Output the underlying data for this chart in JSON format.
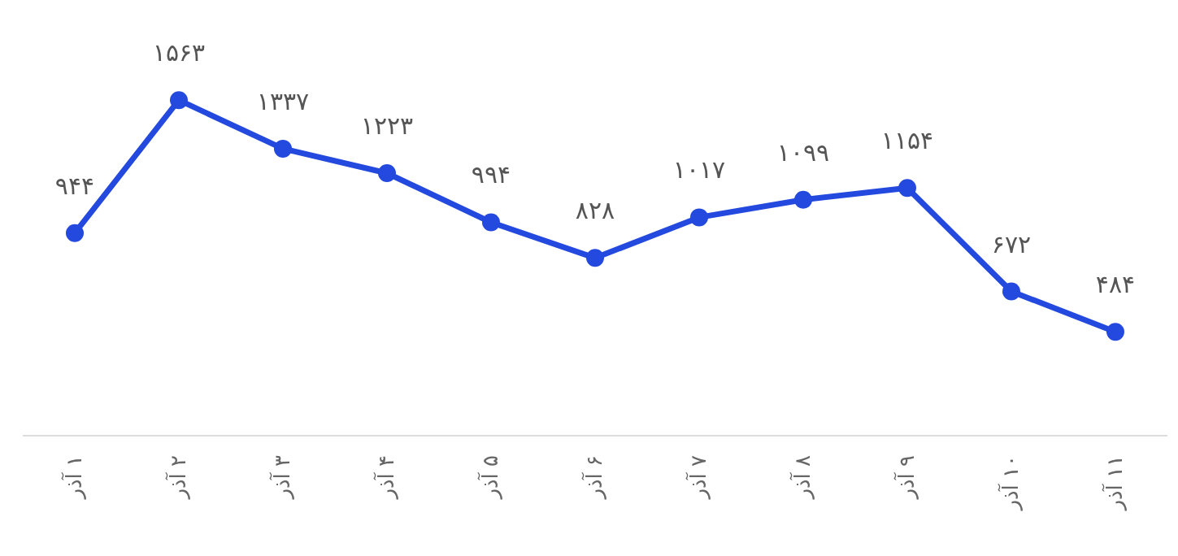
{
  "chart_data": {
    "type": "line",
    "categories": [
      "۱ آذر",
      "۲ آذر",
      "۳ آذر",
      "۴ آذر",
      "۵ آذر",
      "۶ آذر",
      "۷ آذر",
      "۸ آذر",
      "۹ آذر",
      "۱۰ آذر",
      "۱۱ آذر"
    ],
    "series": [
      {
        "color": "#2449de",
        "values": [
          944,
          1563,
          1337,
          1223,
          994,
          828,
          1017,
          1099,
          1154,
          672,
          484
        ],
        "value_labels": [
          "۹۴۴",
          "۱۵۶۳",
          "۱۳۳۷",
          "۱۲۲۳",
          "۹۹۴",
          "۸۲۸",
          "۱۰۱۷",
          "۱۰۹۹",
          "۱۱۵۴",
          "۶۷۲",
          "۴۸۴"
        ]
      }
    ],
    "marker": "circle",
    "line_style": "solid",
    "grid": false
  }
}
